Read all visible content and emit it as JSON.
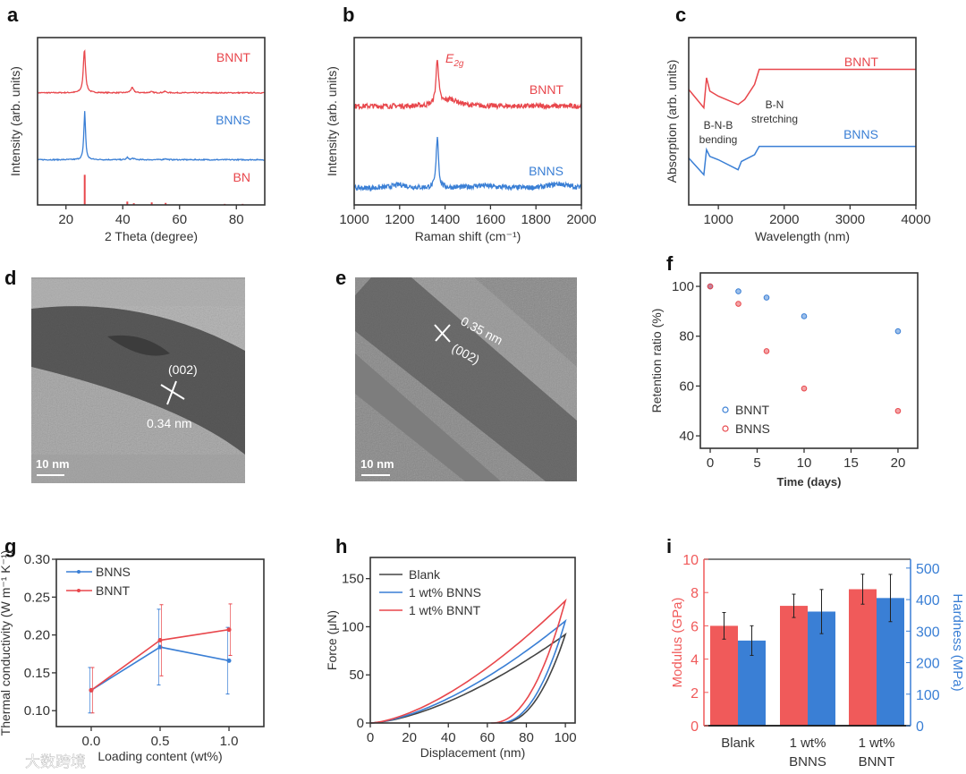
{
  "figure": {
    "panel_labels": [
      "a",
      "b",
      "c",
      "d",
      "e",
      "f",
      "g",
      "h",
      "i"
    ]
  },
  "colors": {
    "red": "#e8474c",
    "blue": "#3a7fd5",
    "black": "#444444",
    "frame": "#333333"
  },
  "chart_data": [
    {
      "panel": "a",
      "type": "line",
      "xlabel": "2 Theta (degree)",
      "ylabel": "Intensity (arb. units)",
      "xlim": [
        10,
        90
      ],
      "ylim": [
        0,
        1
      ],
      "xticks": [
        "20",
        "40",
        "60",
        "80"
      ],
      "series": [
        {
          "name": "BNNT",
          "color": "#e8474c",
          "offset": 0.67,
          "peaks": [
            [
              26.5,
              0.26,
              0.45
            ],
            [
              43.3,
              0.03,
              0.6
            ],
            [
              50,
              0.006,
              0.6
            ],
            [
              54.8,
              0.008,
              0.6
            ]
          ]
        },
        {
          "name": "BNNS",
          "color": "#3a7fd5",
          "offset": 0.27,
          "peaks": [
            [
              26.6,
              0.29,
              0.35
            ],
            [
              41.6,
              0.014,
              0.35
            ],
            [
              43.6,
              0.008,
              0.6
            ],
            [
              55,
              0.006,
              0.6
            ]
          ]
        }
      ],
      "reference": {
        "name": "BN",
        "color": "#e8474c",
        "sticks": [
          [
            26.6,
            0.18
          ],
          [
            41.6,
            0.02
          ],
          [
            43.9,
            0.01
          ],
          [
            50.2,
            0.015
          ],
          [
            55.1,
            0.012
          ],
          [
            75.9,
            0.006
          ],
          [
            82.2,
            0.006
          ]
        ]
      }
    },
    {
      "panel": "b",
      "type": "line",
      "xlabel": "Raman shift (cm⁻¹)",
      "ylabel": "Intensity (arb. units)",
      "xlim": [
        1000,
        2000
      ],
      "ylim": [
        0,
        1
      ],
      "xticks": [
        "1000",
        "1200",
        "1400",
        "1600",
        "1800",
        "2000"
      ],
      "annotation": {
        "text": "E",
        "subscript": "2g",
        "x": 1366
      },
      "series": [
        {
          "name": "BNNT",
          "color": "#e8474c",
          "offset": 0.59,
          "peaks": [
            [
              1366,
              0.27,
              7
            ],
            [
              1425,
              0.04,
              40
            ]
          ]
        },
        {
          "name": "BNNS",
          "color": "#3a7fd5",
          "offset": 0.1,
          "peaks": [
            [
              1366,
              0.31,
              6
            ],
            [
              1200,
              0.02,
              40
            ],
            [
              1560,
              0.015,
              60
            ],
            [
              1900,
              0.025,
              50
            ]
          ]
        }
      ]
    },
    {
      "panel": "c",
      "type": "line",
      "xlabel": "Wavelength (nm)",
      "ylabel": "Absorption (arb. units)",
      "xlim": [
        550,
        4000
      ],
      "ylim": [
        0,
        1
      ],
      "xticks": [
        "1000",
        "2000",
        "3000",
        "4000"
      ],
      "annotations": [
        {
          "lines": [
            "B-N-B",
            "bending"
          ]
        },
        {
          "lines": [
            "B-N",
            "stretching"
          ]
        }
      ],
      "series": [
        {
          "name": "BNNT",
          "color": "#e8474c",
          "x": [
            550,
            780,
            820,
            870,
            1000,
            1300,
            1400,
            1550,
            1620,
            4000
          ],
          "y": [
            0.69,
            0.58,
            0.76,
            0.68,
            0.65,
            0.6,
            0.63,
            0.72,
            0.81,
            0.81
          ]
        },
        {
          "name": "BNNS",
          "color": "#3a7fd5",
          "x": [
            550,
            780,
            820,
            870,
            1000,
            1300,
            1350,
            1550,
            1620,
            4000
          ],
          "y": [
            0.28,
            0.18,
            0.33,
            0.29,
            0.27,
            0.21,
            0.26,
            0.3,
            0.35,
            0.35
          ]
        }
      ]
    },
    {
      "panel": "f",
      "type": "scatter",
      "xlabel": "Time (days)",
      "ylabel": "Retention ratio (%)",
      "xlim": [
        -1.05,
        22.1
      ],
      "ylim": [
        35,
        105.4
      ],
      "xticks": [
        "0",
        "5",
        "10",
        "15",
        "20"
      ],
      "yticks": [
        "40",
        "60",
        "80",
        "100"
      ],
      "legend": "bottom-left",
      "series": [
        {
          "name": "BNNT",
          "color": "#3a7fd5",
          "x": [
            0,
            3,
            6,
            10,
            20
          ],
          "y": [
            100,
            98,
            95.5,
            88,
            82
          ]
        },
        {
          "name": "BNNS",
          "color": "#e8474c",
          "x": [
            0,
            3,
            6,
            10,
            20
          ],
          "y": [
            100,
            93,
            74,
            59,
            50
          ]
        }
      ]
    },
    {
      "panel": "g",
      "type": "line",
      "xlabel": "Loading content (wt%)",
      "ylabel": "Thermal conductivity (W m⁻¹ K⁻¹)",
      "xlim": [
        -0.253,
        1.253
      ],
      "ylim": [
        0.079,
        0.3
      ],
      "xticks": [
        "0.0",
        "0.5",
        "1.0"
      ],
      "yticks": [
        "0.10",
        "0.15",
        "0.20",
        "0.25",
        "0.30"
      ],
      "legend": "top-left",
      "x": [
        0,
        0.5,
        1.0
      ],
      "series": [
        {
          "name": "BNNS",
          "color": "#3a7fd5",
          "y": [
            0.127,
            0.184,
            0.166
          ],
          "err": [
            0.03,
            0.05,
            0.044
          ]
        },
        {
          "name": "BNNT",
          "color": "#e8474c",
          "y": [
            0.127,
            0.193,
            0.207
          ],
          "err": [
            0.03,
            0.047,
            0.034
          ]
        }
      ]
    },
    {
      "panel": "h",
      "type": "line",
      "xlabel": "Displacement (nm)",
      "ylabel": "Force (μN)",
      "xlim": [
        0,
        105
      ],
      "ylim": [
        0,
        172
      ],
      "xticks": [
        "0",
        "20",
        "40",
        "60",
        "80",
        "100"
      ],
      "yticks": [
        "0",
        "50",
        "100",
        "150"
      ],
      "legend": "top-left",
      "series": [
        {
          "name": "Blank",
          "color": "#444444",
          "max_depth": 100,
          "max_force": 92,
          "final_depth": 67
        },
        {
          "name": "1 wt% BNNS",
          "color": "#3a7fd5",
          "max_depth": 100,
          "max_force": 106,
          "final_depth": 66
        },
        {
          "name": "1 wt% BNNT",
          "color": "#e8474c",
          "max_depth": 100,
          "max_force": 127,
          "final_depth": 62
        }
      ]
    },
    {
      "panel": "i",
      "type": "bar",
      "categories": [
        [
          "Blank"
        ],
        [
          "1 wt%",
          "BNNS"
        ],
        [
          "1 wt%",
          "BNNT"
        ]
      ],
      "ylabel_left": "Modulus (GPa)",
      "ylabel_right": "Hardness (MPa)",
      "ylim_left": [
        0,
        10
      ],
      "ylim_right": [
        0,
        528
      ],
      "yticks_left": [
        "0",
        "2",
        "4",
        "6",
        "8",
        "10"
      ],
      "yticks_right": [
        "0",
        "100",
        "200",
        "300",
        "400",
        "500"
      ],
      "series": [
        {
          "name": "Modulus",
          "axis": "left",
          "color": "#f05a5a",
          "values": [
            6.0,
            7.2,
            8.2
          ],
          "err": [
            0.8,
            0.7,
            0.9
          ]
        },
        {
          "name": "Hardness",
          "axis": "right",
          "color": "#3a7fd5",
          "values": [
            270,
            362,
            405
          ],
          "err": [
            47,
            70,
            75
          ]
        }
      ]
    }
  ],
  "images": [
    {
      "panel": "d",
      "plane": "(002)",
      "spacing": "0.34 nm",
      "scale_bar": "10 nm"
    },
    {
      "panel": "e",
      "plane": "(002)",
      "spacing": "0.35 nm",
      "scale_bar": "10 nm"
    }
  ],
  "watermark": "大数跨境"
}
